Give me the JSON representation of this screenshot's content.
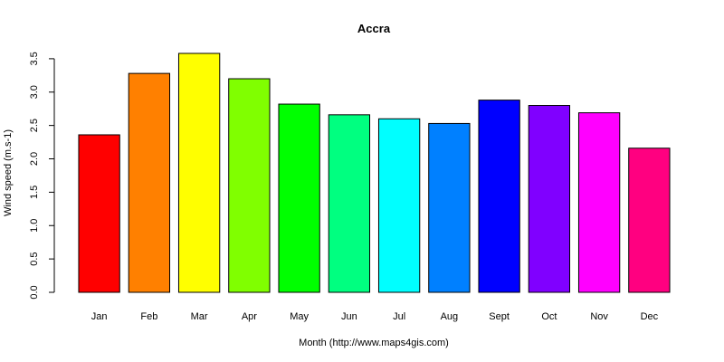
{
  "chart_data": {
    "type": "bar",
    "title": "Accra",
    "xlabel": "Month (http://www.maps4gis.com)",
    "ylabel": "Wind speed (m.s-1)",
    "categories": [
      "Jan",
      "Feb",
      "Mar",
      "Apr",
      "May",
      "Jun",
      "Jul",
      "Aug",
      "Sept",
      "Oct",
      "Nov",
      "Dec"
    ],
    "values": [
      2.36,
      3.28,
      3.58,
      3.2,
      2.82,
      2.66,
      2.6,
      2.53,
      2.88,
      2.8,
      2.69,
      2.16
    ],
    "colors": [
      "#FF0000",
      "#FF8000",
      "#FFFF00",
      "#80FF00",
      "#00FF00",
      "#00FF80",
      "#00FFFF",
      "#0080FF",
      "#0000FF",
      "#8000FF",
      "#FF00FF",
      "#FF0080"
    ],
    "bar_border_color": "#000000",
    "ylim": [
      0,
      3.58
    ],
    "yticks": [
      0,
      0.5,
      1,
      1.5,
      2,
      2.5,
      3,
      3.5
    ],
    "ytick_labels": [
      "0.0",
      "0.5",
      "1.0",
      "1.5",
      "2.0",
      "2.5",
      "3.0",
      "3.5"
    ],
    "grid": false,
    "legend": "none"
  }
}
